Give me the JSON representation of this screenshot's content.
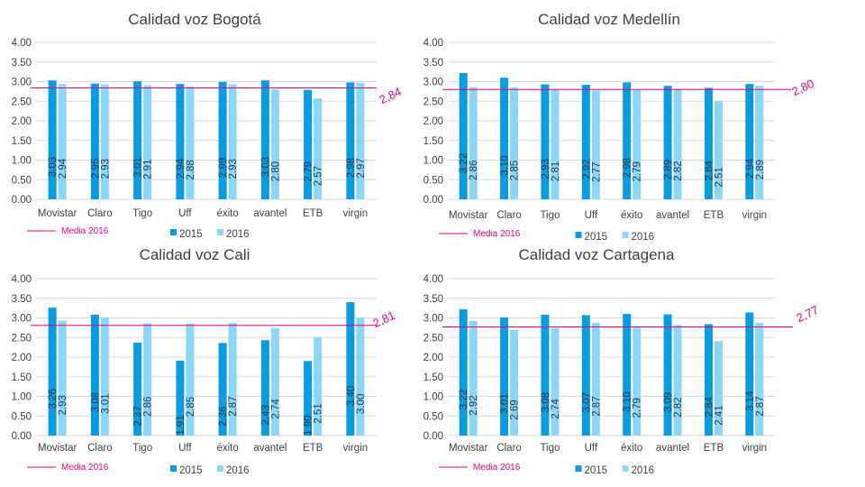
{
  "chart_data": [
    {
      "type": "bar",
      "title": "Calidad voz Bogotá",
      "categories": [
        "Movistar",
        "Claro",
        "Tigo",
        "Uff",
        "éxito",
        "avantel",
        "ETB",
        "virgin"
      ],
      "series": [
        {
          "name": "2015",
          "values": [
            3.03,
            2.95,
            3.01,
            2.94,
            2.99,
            3.03,
            2.79,
            2.98
          ],
          "labels": [
            "3.03",
            "2.95",
            "3.01",
            "2.94",
            "2.99",
            "3.03",
            "2.79",
            "2.98"
          ]
        },
        {
          "name": "2016",
          "values": [
            2.94,
            2.93,
            2.91,
            2.88,
            2.93,
            2.8,
            2.57,
            2.97
          ],
          "labels": [
            "2.94",
            "2.93",
            "2.91",
            "2.88",
            "2.93",
            "2.80",
            "2.57",
            "2.97"
          ]
        }
      ],
      "ylim": [
        0,
        4
      ],
      "ticks": [
        "0.00",
        "0.50",
        "1.00",
        "1.50",
        "2.00",
        "2.50",
        "3.00",
        "3.50",
        "4.00"
      ],
      "mean": {
        "label": "Media 2016",
        "value": 2.84,
        "text": "2,84"
      },
      "xlabel": "",
      "ylabel": "",
      "grid": true
    },
    {
      "type": "bar",
      "title": "Calidad voz Medellín",
      "categories": [
        "Movistar",
        "Claro",
        "Tigo",
        "Uff",
        "éxito",
        "avantel",
        "ETB",
        "virgin"
      ],
      "series": [
        {
          "name": "2015",
          "values": [
            3.22,
            3.1,
            2.93,
            2.92,
            2.98,
            2.89,
            2.84,
            2.94
          ],
          "labels": [
            "3.22",
            "3.10",
            "2.93",
            "2.92",
            "2.98",
            "2.89",
            "2.84",
            "2.94"
          ]
        },
        {
          "name": "2016",
          "values": [
            2.86,
            2.85,
            2.81,
            2.77,
            2.79,
            2.82,
            2.51,
            2.89
          ],
          "labels": [
            "2.86",
            "2.85",
            "2.81",
            "2.77",
            "2.79",
            "2.82",
            "2.51",
            "2.89"
          ]
        }
      ],
      "ylim": [
        0,
        4
      ],
      "ticks": [
        "0.00",
        "0.50",
        "1.00",
        "1.50",
        "2.00",
        "2.50",
        "3.00",
        "3.50",
        "4.00"
      ],
      "mean": {
        "label": "Media 2016",
        "value": 2.8,
        "text": "2,80"
      },
      "xlabel": "",
      "ylabel": "",
      "grid": true
    },
    {
      "type": "bar",
      "title": "Calidad voz Cali",
      "categories": [
        "Movistar",
        "Claro",
        "Tigo",
        "Uff",
        "éxito",
        "avantel",
        "ETB",
        "virgin"
      ],
      "series": [
        {
          "name": "2015",
          "values": [
            3.26,
            3.08,
            2.37,
            1.91,
            2.36,
            2.43,
            1.9,
            3.4
          ],
          "labels": [
            "3.26",
            "3.08",
            "2.37",
            "1.91",
            "2.36",
            "2.43",
            "1.90",
            "3.40"
          ]
        },
        {
          "name": "2016",
          "values": [
            2.93,
            3.01,
            2.86,
            2.85,
            2.87,
            2.74,
            2.51,
            3.0
          ],
          "labels": [
            "2.93",
            "3.01",
            "2.86",
            "2.85",
            "2.87",
            "2.74",
            "2.51",
            "3.00"
          ]
        }
      ],
      "ylim": [
        0,
        4
      ],
      "ticks": [
        "0.00",
        "0.50",
        "1.00",
        "1.50",
        "2.00",
        "2.50",
        "3.00",
        "3.50",
        "4.00"
      ],
      "mean": {
        "label": "Media 2016",
        "value": 2.81,
        "text": "2,81"
      },
      "xlabel": "",
      "ylabel": "",
      "grid": true
    },
    {
      "type": "bar",
      "title": "Calidad voz Cartagena",
      "categories": [
        "Movistar",
        "Claro",
        "Tigo",
        "Uff",
        "éxito",
        "avantel",
        "ETB",
        "virgin"
      ],
      "series": [
        {
          "name": "2015",
          "values": [
            3.22,
            3.01,
            3.08,
            3.07,
            3.1,
            3.09,
            2.84,
            3.14
          ],
          "labels": [
            "3.22",
            "3.01",
            "3.08",
            "3.07",
            "3.10",
            "3.09",
            "2.84",
            "3.14"
          ]
        },
        {
          "name": "2016",
          "values": [
            2.92,
            2.69,
            2.74,
            2.87,
            2.79,
            2.82,
            2.41,
            2.87
          ],
          "labels": [
            "2.92",
            "2.69",
            "2.74",
            "2.87",
            "2.79",
            "2.82",
            "2.41",
            "2.87"
          ]
        }
      ],
      "ylim": [
        0,
        4
      ],
      "ticks": [
        "0.00",
        "0.50",
        "1.00",
        "1.50",
        "2.00",
        "2.50",
        "3.00",
        "3.50",
        "4.00"
      ],
      "mean": {
        "label": "Media 2016",
        "value": 2.77,
        "text": "2,77"
      },
      "xlabel": "",
      "ylabel": "",
      "grid": true
    }
  ],
  "colors": {
    "series_2015": "#0A9BE0",
    "series_2016": "#8DD6F5",
    "mean_line": "#E6007E",
    "grid": "#D9D9D9",
    "axis_text": "#404040",
    "title_text": "#404040",
    "label_text": "#1F3A4D"
  }
}
